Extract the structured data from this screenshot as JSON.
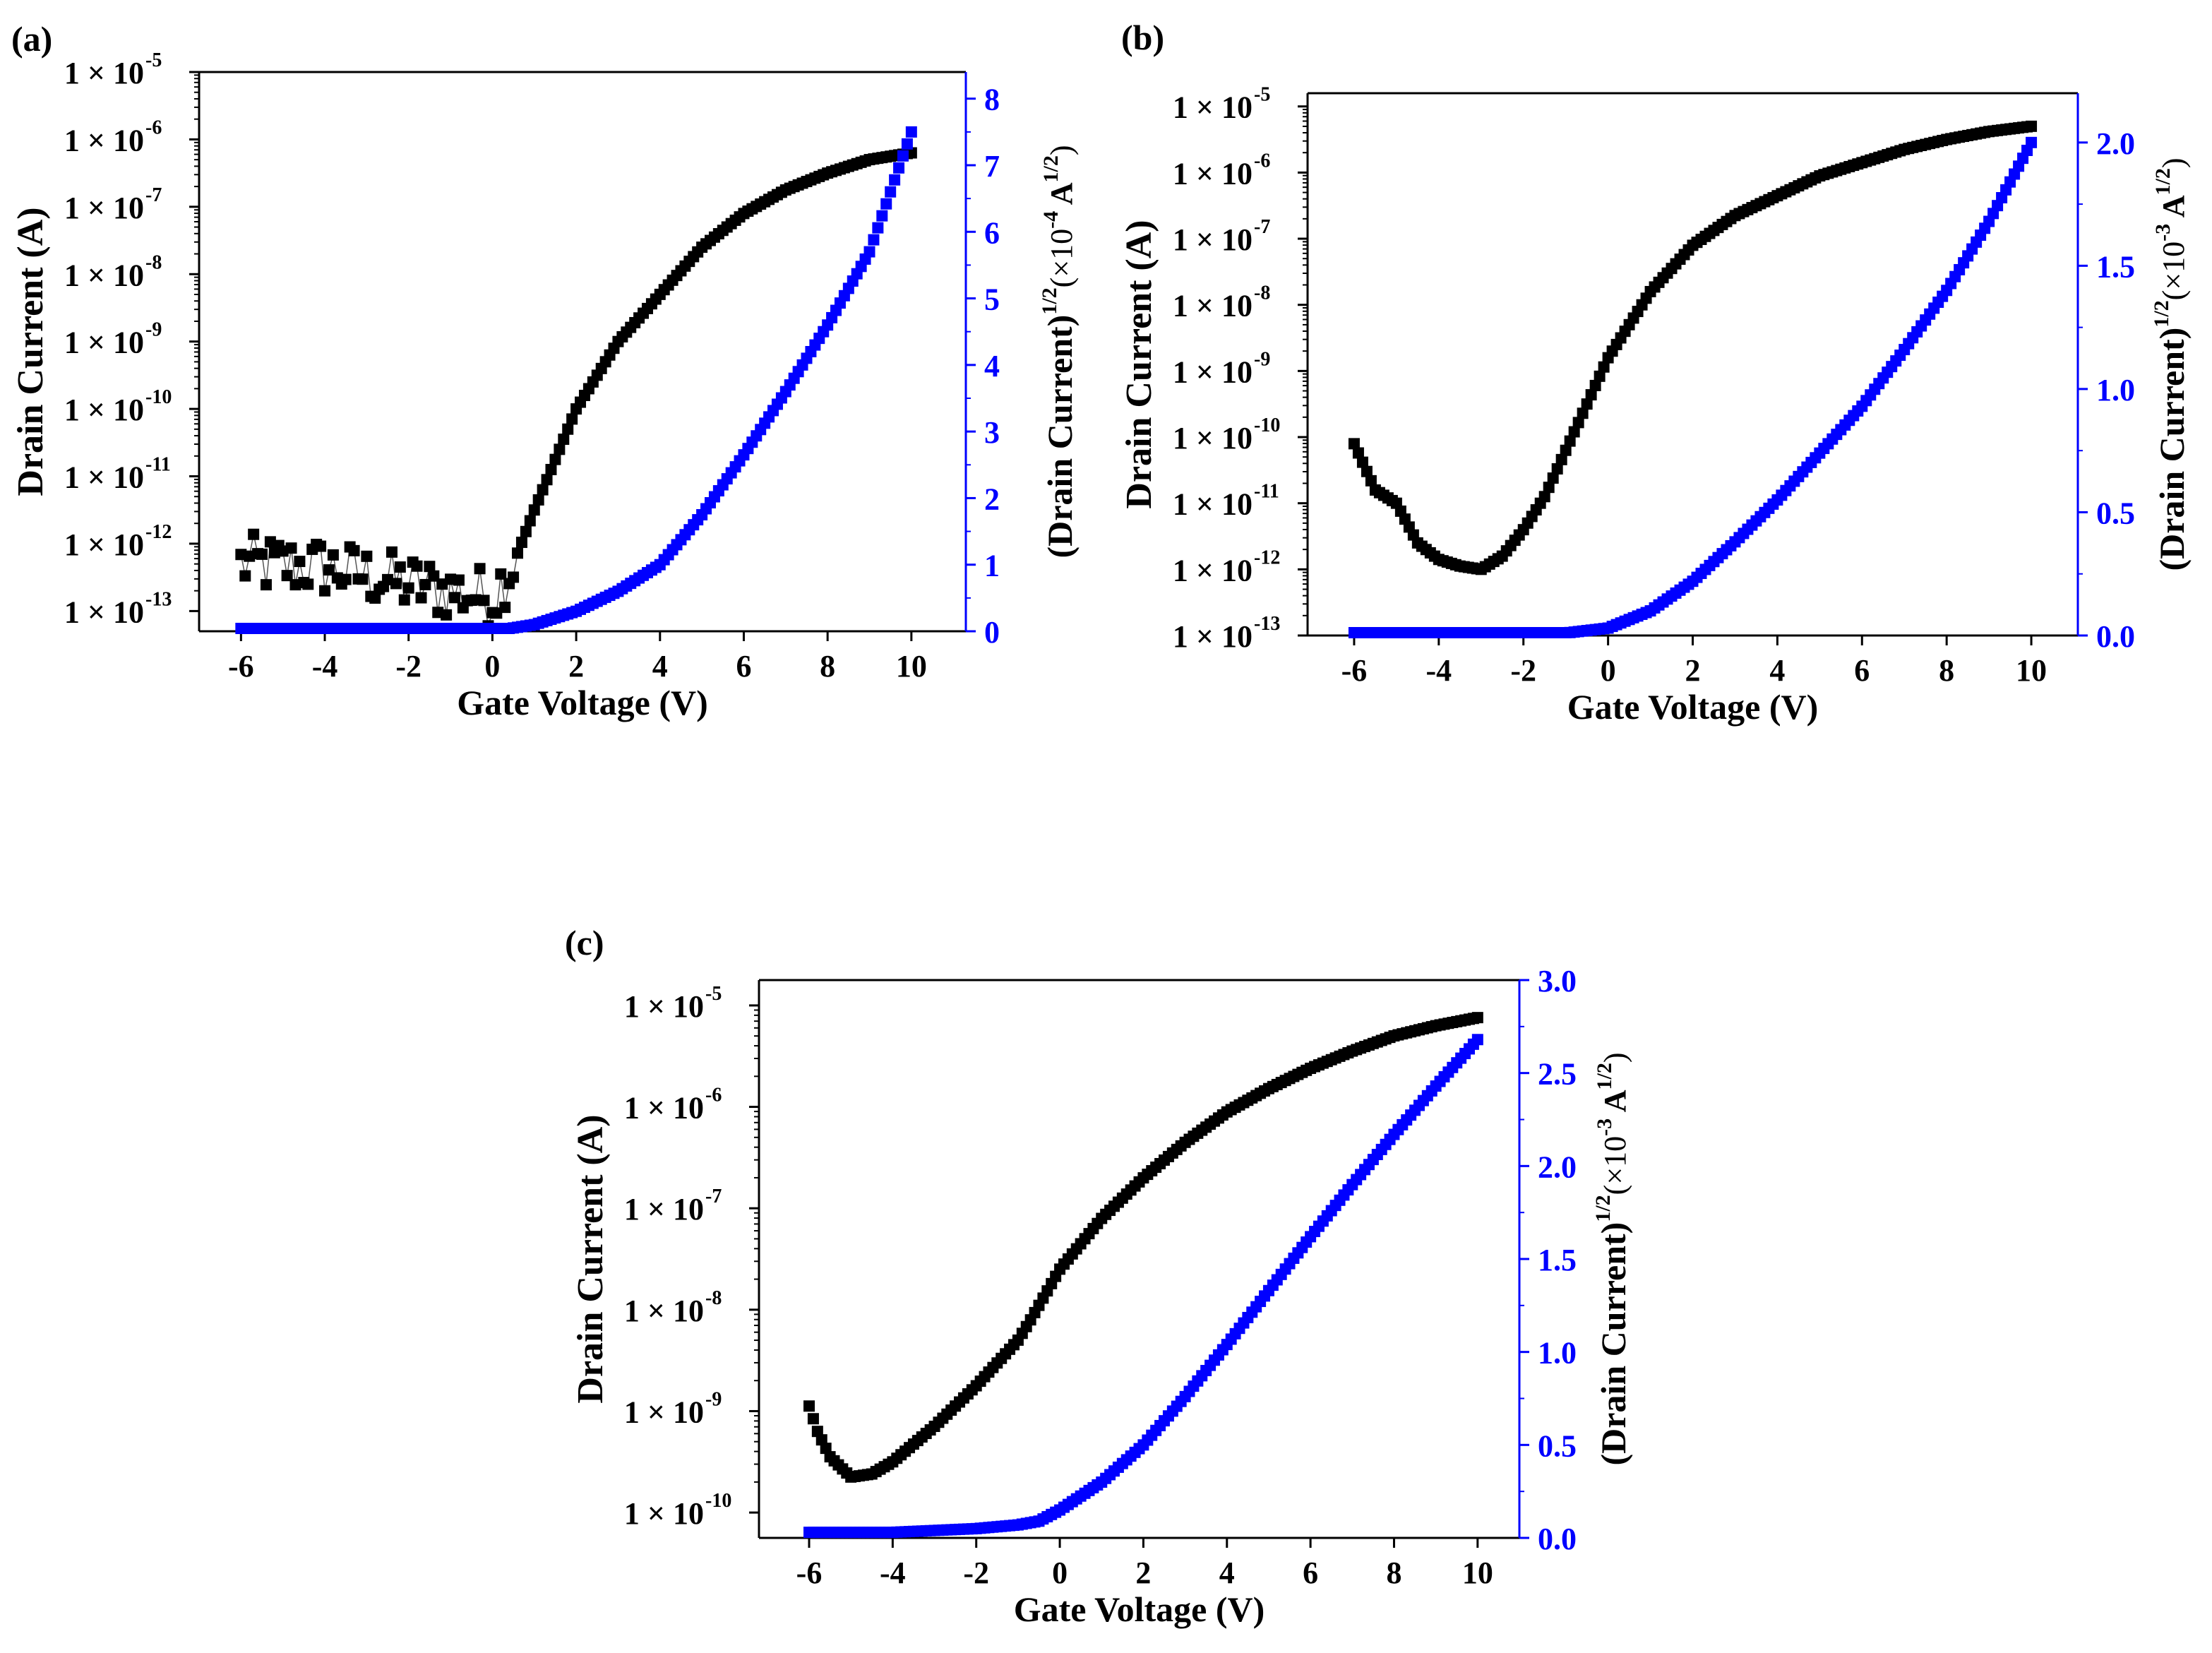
{
  "figure": {
    "colors": {
      "left_axis": "#000000",
      "right_axis": "#0000ff",
      "left_series": "#000000",
      "right_series": "#0000ff"
    }
  },
  "chart_data": [
    {
      "panel_label": "(a)",
      "type": "scatter",
      "xlabel": "Gate Voltage (V)",
      "ylabel_left": "Drain Current (A)",
      "ylabel_right_main": "(Drain Current)",
      "ylabel_right_sup1": "1/2",
      "ylabel_right_unit_pre": "(×10",
      "ylabel_right_unit_exp": "-4",
      "ylabel_right_unit_mid": " A",
      "ylabel_right_unit_sup": "1/2",
      "ylabel_right_unit_post": ")",
      "xlim": [
        -7,
        11.3
      ],
      "xticks": [
        -6,
        -4,
        -2,
        0,
        2,
        4,
        6,
        8,
        10
      ],
      "ylim_left_log10": [
        -13.3,
        -5
      ],
      "yticks_left": [
        {
          "exp": -5,
          "mant": "1 × 10",
          "sup": "-5"
        },
        {
          "exp": -6,
          "mant": "1 × 10",
          "sup": "-6"
        },
        {
          "exp": -7,
          "mant": "1 × 10",
          "sup": "-7"
        },
        {
          "exp": -8,
          "mant": "1 × 10",
          "sup": "-8"
        },
        {
          "exp": -9,
          "mant": "1 × 10",
          "sup": "-9"
        },
        {
          "exp": -10,
          "mant": "1 × 10",
          "sup": "-10"
        },
        {
          "exp": -11,
          "mant": "1 × 10",
          "sup": "-11"
        },
        {
          "exp": -12,
          "mant": "1 × 10",
          "sup": "-12"
        },
        {
          "exp": -13,
          "mant": "1 × 10",
          "sup": "-13"
        }
      ],
      "ylim_right": [
        0,
        8.4
      ],
      "yticks_right": [
        "0",
        "1",
        "2",
        "3",
        "4",
        "5",
        "6",
        "7",
        "8"
      ],
      "series": [
        {
          "name": "Drain Current",
          "axis": "left",
          "style": "noisy",
          "x": [
            -6,
            -4,
            -2,
            0,
            0.5,
            1,
            2,
            3,
            4,
            5,
            6,
            7,
            8,
            9,
            10
          ],
          "y_log10": [
            -12.3,
            -12.35,
            -12.6,
            -12.8,
            -12.3,
            -11.5,
            -10.0,
            -9.0,
            -8.3,
            -7.6,
            -7.1,
            -6.75,
            -6.5,
            -6.3,
            -6.2
          ]
        },
        {
          "name": "(Drain Current)^1/2",
          "axis": "right",
          "style": "smooth",
          "x": [
            -6,
            0,
            1,
            2,
            3,
            4,
            5,
            6,
            7,
            8,
            9,
            10
          ],
          "y": [
            0,
            0,
            0.1,
            0.3,
            0.6,
            1.0,
            1.75,
            2.65,
            3.6,
            4.6,
            5.7,
            7.5
          ]
        }
      ]
    },
    {
      "panel_label": "(b)",
      "type": "scatter",
      "xlabel": "Gate Voltage (V)",
      "ylabel_left": "Drain Current (A)",
      "ylabel_right_main": "(Drain Current)",
      "ylabel_right_sup1": "1/2",
      "ylabel_right_unit_pre": "(×10",
      "ylabel_right_unit_exp": "-3",
      "ylabel_right_unit_mid": " A",
      "ylabel_right_unit_sup": "1/2",
      "ylabel_right_unit_post": ")",
      "xlim": [
        -7.1,
        11.1
      ],
      "xticks": [
        -6,
        -4,
        -2,
        0,
        2,
        4,
        6,
        8,
        10
      ],
      "ylim_left_log10": [
        -13,
        -4.8
      ],
      "yticks_left": [
        {
          "exp": -5,
          "mant": "1 × 10",
          "sup": "-5"
        },
        {
          "exp": -6,
          "mant": "1 × 10",
          "sup": "-6"
        },
        {
          "exp": -7,
          "mant": "1 × 10",
          "sup": "-7"
        },
        {
          "exp": -8,
          "mant": "1 × 10",
          "sup": "-8"
        },
        {
          "exp": -9,
          "mant": "1 × 10",
          "sup": "-9"
        },
        {
          "exp": -10,
          "mant": "1 × 10",
          "sup": "-10"
        },
        {
          "exp": -11,
          "mant": "1 × 10",
          "sup": "-11"
        },
        {
          "exp": -12,
          "mant": "1 × 10",
          "sup": "-12"
        },
        {
          "exp": -13,
          "mant": "1 × 10",
          "sup": "-13"
        }
      ],
      "ylim_right": [
        0,
        2.2
      ],
      "yticks_right": [
        "0.0",
        "0.5",
        "1.0",
        "1.5",
        "2.0"
      ],
      "series": [
        {
          "name": "Drain Current",
          "axis": "left",
          "style": "smooth",
          "x": [
            -6,
            -5.5,
            -5,
            -4.5,
            -4,
            -3.5,
            -3,
            -2.5,
            -2,
            -1.5,
            -1,
            -0.5,
            0,
            1,
            2,
            3,
            4,
            5,
            6,
            7,
            8,
            9,
            10
          ],
          "y_log10": [
            -10.1,
            -10.8,
            -11.0,
            -11.6,
            -11.85,
            -11.95,
            -12.0,
            -11.8,
            -11.4,
            -10.9,
            -10.2,
            -9.5,
            -8.8,
            -7.8,
            -7.1,
            -6.65,
            -6.35,
            -6.05,
            -5.85,
            -5.65,
            -5.5,
            -5.38,
            -5.3
          ]
        },
        {
          "name": "(Drain Current)^1/2",
          "axis": "right",
          "style": "smooth",
          "x": [
            -6,
            -2,
            -1,
            0,
            1,
            2,
            3,
            4,
            5,
            6,
            7,
            8,
            9,
            10
          ],
          "y": [
            0.0,
            0.0,
            0.01,
            0.03,
            0.1,
            0.22,
            0.38,
            0.55,
            0.74,
            0.93,
            1.16,
            1.4,
            1.68,
            2.0
          ]
        }
      ]
    },
    {
      "panel_label": "(c)",
      "type": "scatter",
      "xlabel": "Gate Voltage (V)",
      "ylabel_left": "Drain Current (A)",
      "ylabel_right_main": "(Drain Current)",
      "ylabel_right_sup1": "1/2",
      "ylabel_right_unit_pre": "(×10",
      "ylabel_right_unit_exp": "-3",
      "ylabel_right_unit_mid": " A",
      "ylabel_right_unit_sup": "1/2",
      "ylabel_right_unit_post": ")",
      "xlim": [
        -7.2,
        11.0
      ],
      "xticks": [
        -6,
        -4,
        -2,
        0,
        2,
        4,
        6,
        8,
        10
      ],
      "ylim_left_log10": [
        -10.25,
        -4.75
      ],
      "yticks_left": [
        {
          "exp": -5,
          "mant": "1 × 10",
          "sup": "-5"
        },
        {
          "exp": -6,
          "mant": "1 × 10",
          "sup": "-6"
        },
        {
          "exp": -7,
          "mant": "1 × 10",
          "sup": "-7"
        },
        {
          "exp": -8,
          "mant": "1 × 10",
          "sup": "-8"
        },
        {
          "exp": -9,
          "mant": "1 × 10",
          "sup": "-9"
        },
        {
          "exp": -10,
          "mant": "1 × 10",
          "sup": "-10"
        }
      ],
      "ylim_right": [
        0,
        3.0
      ],
      "yticks_right": [
        "0.0",
        "0.5",
        "1.0",
        "1.5",
        "2.0",
        "2.5",
        "3.0"
      ],
      "series": [
        {
          "name": "Drain Current",
          "axis": "left",
          "style": "smooth",
          "x": [
            -6,
            -5.8,
            -5.5,
            -5,
            -4.5,
            -4,
            -3,
            -2,
            -1,
            -0.7,
            0,
            1,
            2,
            3,
            4,
            5,
            6,
            7,
            8,
            9,
            10
          ],
          "y_log10": [
            -8.95,
            -9.2,
            -9.45,
            -9.65,
            -9.62,
            -9.5,
            -9.15,
            -8.75,
            -8.3,
            -8.1,
            -7.6,
            -7.1,
            -6.7,
            -6.35,
            -6.05,
            -5.82,
            -5.62,
            -5.45,
            -5.3,
            -5.2,
            -5.12
          ]
        },
        {
          "name": "(Drain Current)^1/2",
          "axis": "right",
          "style": "smooth",
          "x": [
            -6,
            -4,
            -2,
            -1,
            -0.5,
            0,
            1,
            2,
            3,
            4,
            5,
            6,
            7,
            8,
            9,
            10
          ],
          "y": [
            0.03,
            0.03,
            0.05,
            0.07,
            0.09,
            0.15,
            0.3,
            0.5,
            0.76,
            1.04,
            1.33,
            1.62,
            1.9,
            2.17,
            2.43,
            2.68
          ]
        }
      ]
    }
  ]
}
